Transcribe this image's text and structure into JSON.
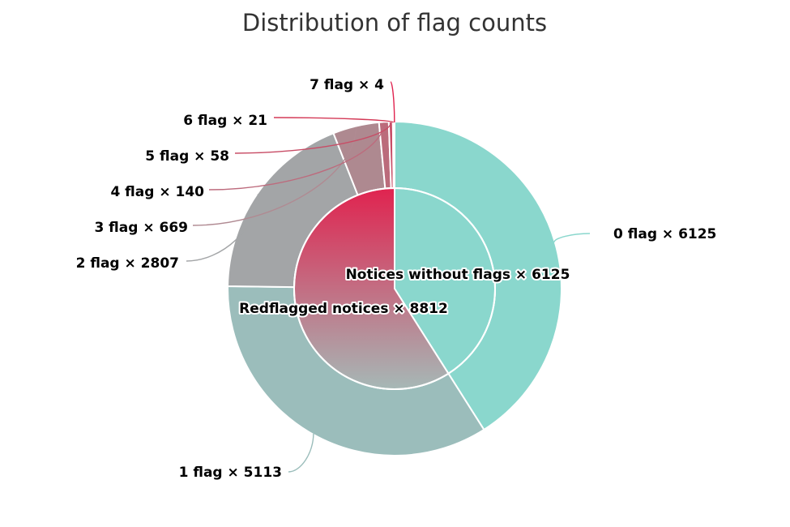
{
  "chart_data": {
    "type": "pie",
    "title": "Distribution of flag counts",
    "inner_ring": {
      "slices": [
        {
          "label": "Notices without flags × 6125",
          "name": "Notices without flags",
          "value": 6125,
          "color": "#8ad7cd"
        },
        {
          "label": "Redflagged notices × 8812",
          "name": "Redflagged notices",
          "value": 8812,
          "gradient": [
            "#e0234f",
            "#a6b8b6"
          ]
        }
      ]
    },
    "outer_ring": {
      "slices": [
        {
          "label": "0 flag × 6125",
          "name": "0 flag",
          "value": 6125,
          "color": "#8ad7cd",
          "line_color": "#8ad7cd"
        },
        {
          "label": "1 flag × 5113",
          "name": "1 flag",
          "value": 5113,
          "color": "#9bbdbb",
          "line_color": "#9bbdbb"
        },
        {
          "label": "2 flag × 2807",
          "name": "2 flag",
          "value": 2807,
          "color": "#a3a5a7",
          "line_color": "#a3a5a7"
        },
        {
          "label": "3 flag × 669",
          "name": "3 flag",
          "value": 669,
          "color": "#ae8990",
          "line_color": "#b08a92"
        },
        {
          "label": "4 flag × 140",
          "name": "4 flag",
          "value": 140,
          "color": "#bb6b7b",
          "line_color": "#bd6b7d"
        },
        {
          "label": "5 flag × 58",
          "name": "5 flag",
          "value": 58,
          "color": "#c84d66",
          "line_color": "#c84d66"
        },
        {
          "label": "6 flag × 21",
          "name": "6 flag",
          "value": 21,
          "color": "#d43a57",
          "line_color": "#d43a57"
        },
        {
          "label": "7 flag × 4",
          "name": "7 flag",
          "value": 4,
          "color": "#e0234f",
          "line_color": "#e0234f"
        }
      ]
    }
  }
}
